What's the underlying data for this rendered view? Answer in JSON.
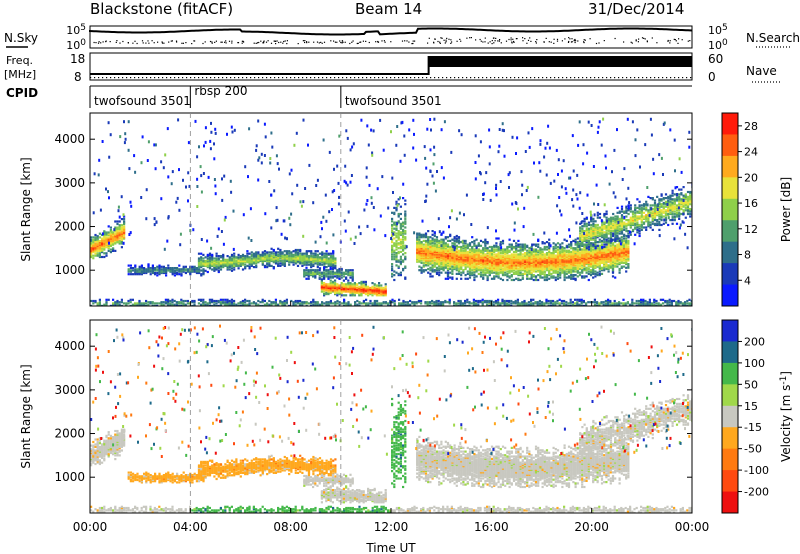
{
  "header": {
    "station": "Blackstone (fitACF)",
    "beam": "Beam 14",
    "date": "31/Dec/2014"
  },
  "labels": {
    "nsky": "N.Sky",
    "nsearch": "N.Search",
    "freq": "Freq.",
    "freq_unit": "[MHz]",
    "nave": "Nave",
    "cpid": "CPID",
    "slant_range": "Slant Range [km]",
    "time_axis": "Time UT",
    "power_label": "Power [dB]",
    "velocity_label": "Velocity [m s",
    "velocity_sup": "-1",
    "velocity_close": "]"
  },
  "noise_panel": {
    "left_ticks": [
      "10^5",
      "10^0"
    ],
    "right_ticks": [
      "10^5",
      "10^0"
    ]
  },
  "freq_panel": {
    "left_ticks": [
      "18",
      "8"
    ],
    "right_ticks": [
      "60",
      "0"
    ]
  },
  "cpid_segments": [
    {
      "start_hour": 0.0,
      "end_hour": 4.0,
      "label": "twofsound 3501"
    },
    {
      "start_hour": 4.0,
      "end_hour": 10.0,
      "label": "rbsp 200"
    },
    {
      "start_hour": 10.0,
      "end_hour": 24.0,
      "label": "twofsound 3501"
    }
  ],
  "chart_data": [
    {
      "type": "heatmap",
      "name": "power",
      "xlabel": "Time UT",
      "ylabel": "Slant Range [km]",
      "xlim_hours": [
        0,
        24
      ],
      "ylim_km": [
        180,
        4600
      ],
      "x_ticks": [
        "00:00",
        "04:00",
        "08:00",
        "12:00",
        "16:00",
        "20:00",
        "00:00"
      ],
      "x_tick_hours": [
        0,
        4,
        8,
        12,
        16,
        20,
        24
      ],
      "y_ticks": [
        1000,
        2000,
        3000,
        4000
      ],
      "colorbar_label": "Power [dB]",
      "colorbar_ticks": [
        "4",
        "8",
        "12",
        "16",
        "20",
        "24",
        "28"
      ],
      "colorbar_range": [
        0,
        30
      ],
      "colorbar_colors": [
        "#0a1aff",
        "#1a3ab8",
        "#2e6e8a",
        "#4f9f6c",
        "#8fd04a",
        "#e8e23a",
        "#ffaa1e",
        "#ff5e10",
        "#ff1a0a"
      ]
    },
    {
      "type": "heatmap",
      "name": "velocity",
      "xlabel": "Time UT",
      "ylabel": "Slant Range [km]",
      "xlim_hours": [
        0,
        24
      ],
      "ylim_km": [
        180,
        4600
      ],
      "x_ticks": [
        "00:00",
        "04:00",
        "08:00",
        "12:00",
        "16:00",
        "20:00",
        "00:00"
      ],
      "x_tick_hours": [
        0,
        4,
        8,
        12,
        16,
        20,
        24
      ],
      "y_ticks": [
        1000,
        2000,
        3000,
        4000
      ],
      "colorbar_label": "Velocity [m s-1]",
      "colorbar_ticks": [
        "200",
        "100",
        "50",
        "15",
        "-15",
        "-50",
        "-100",
        "-200"
      ],
      "colorbar_colors": [
        "#1a2ad0",
        "#1e6a8a",
        "#44b84a",
        "#a0d84a",
        "#c8c8c0",
        "#ffa81e",
        "#ff7a10",
        "#ff4a10",
        "#ee1010"
      ]
    }
  ]
}
